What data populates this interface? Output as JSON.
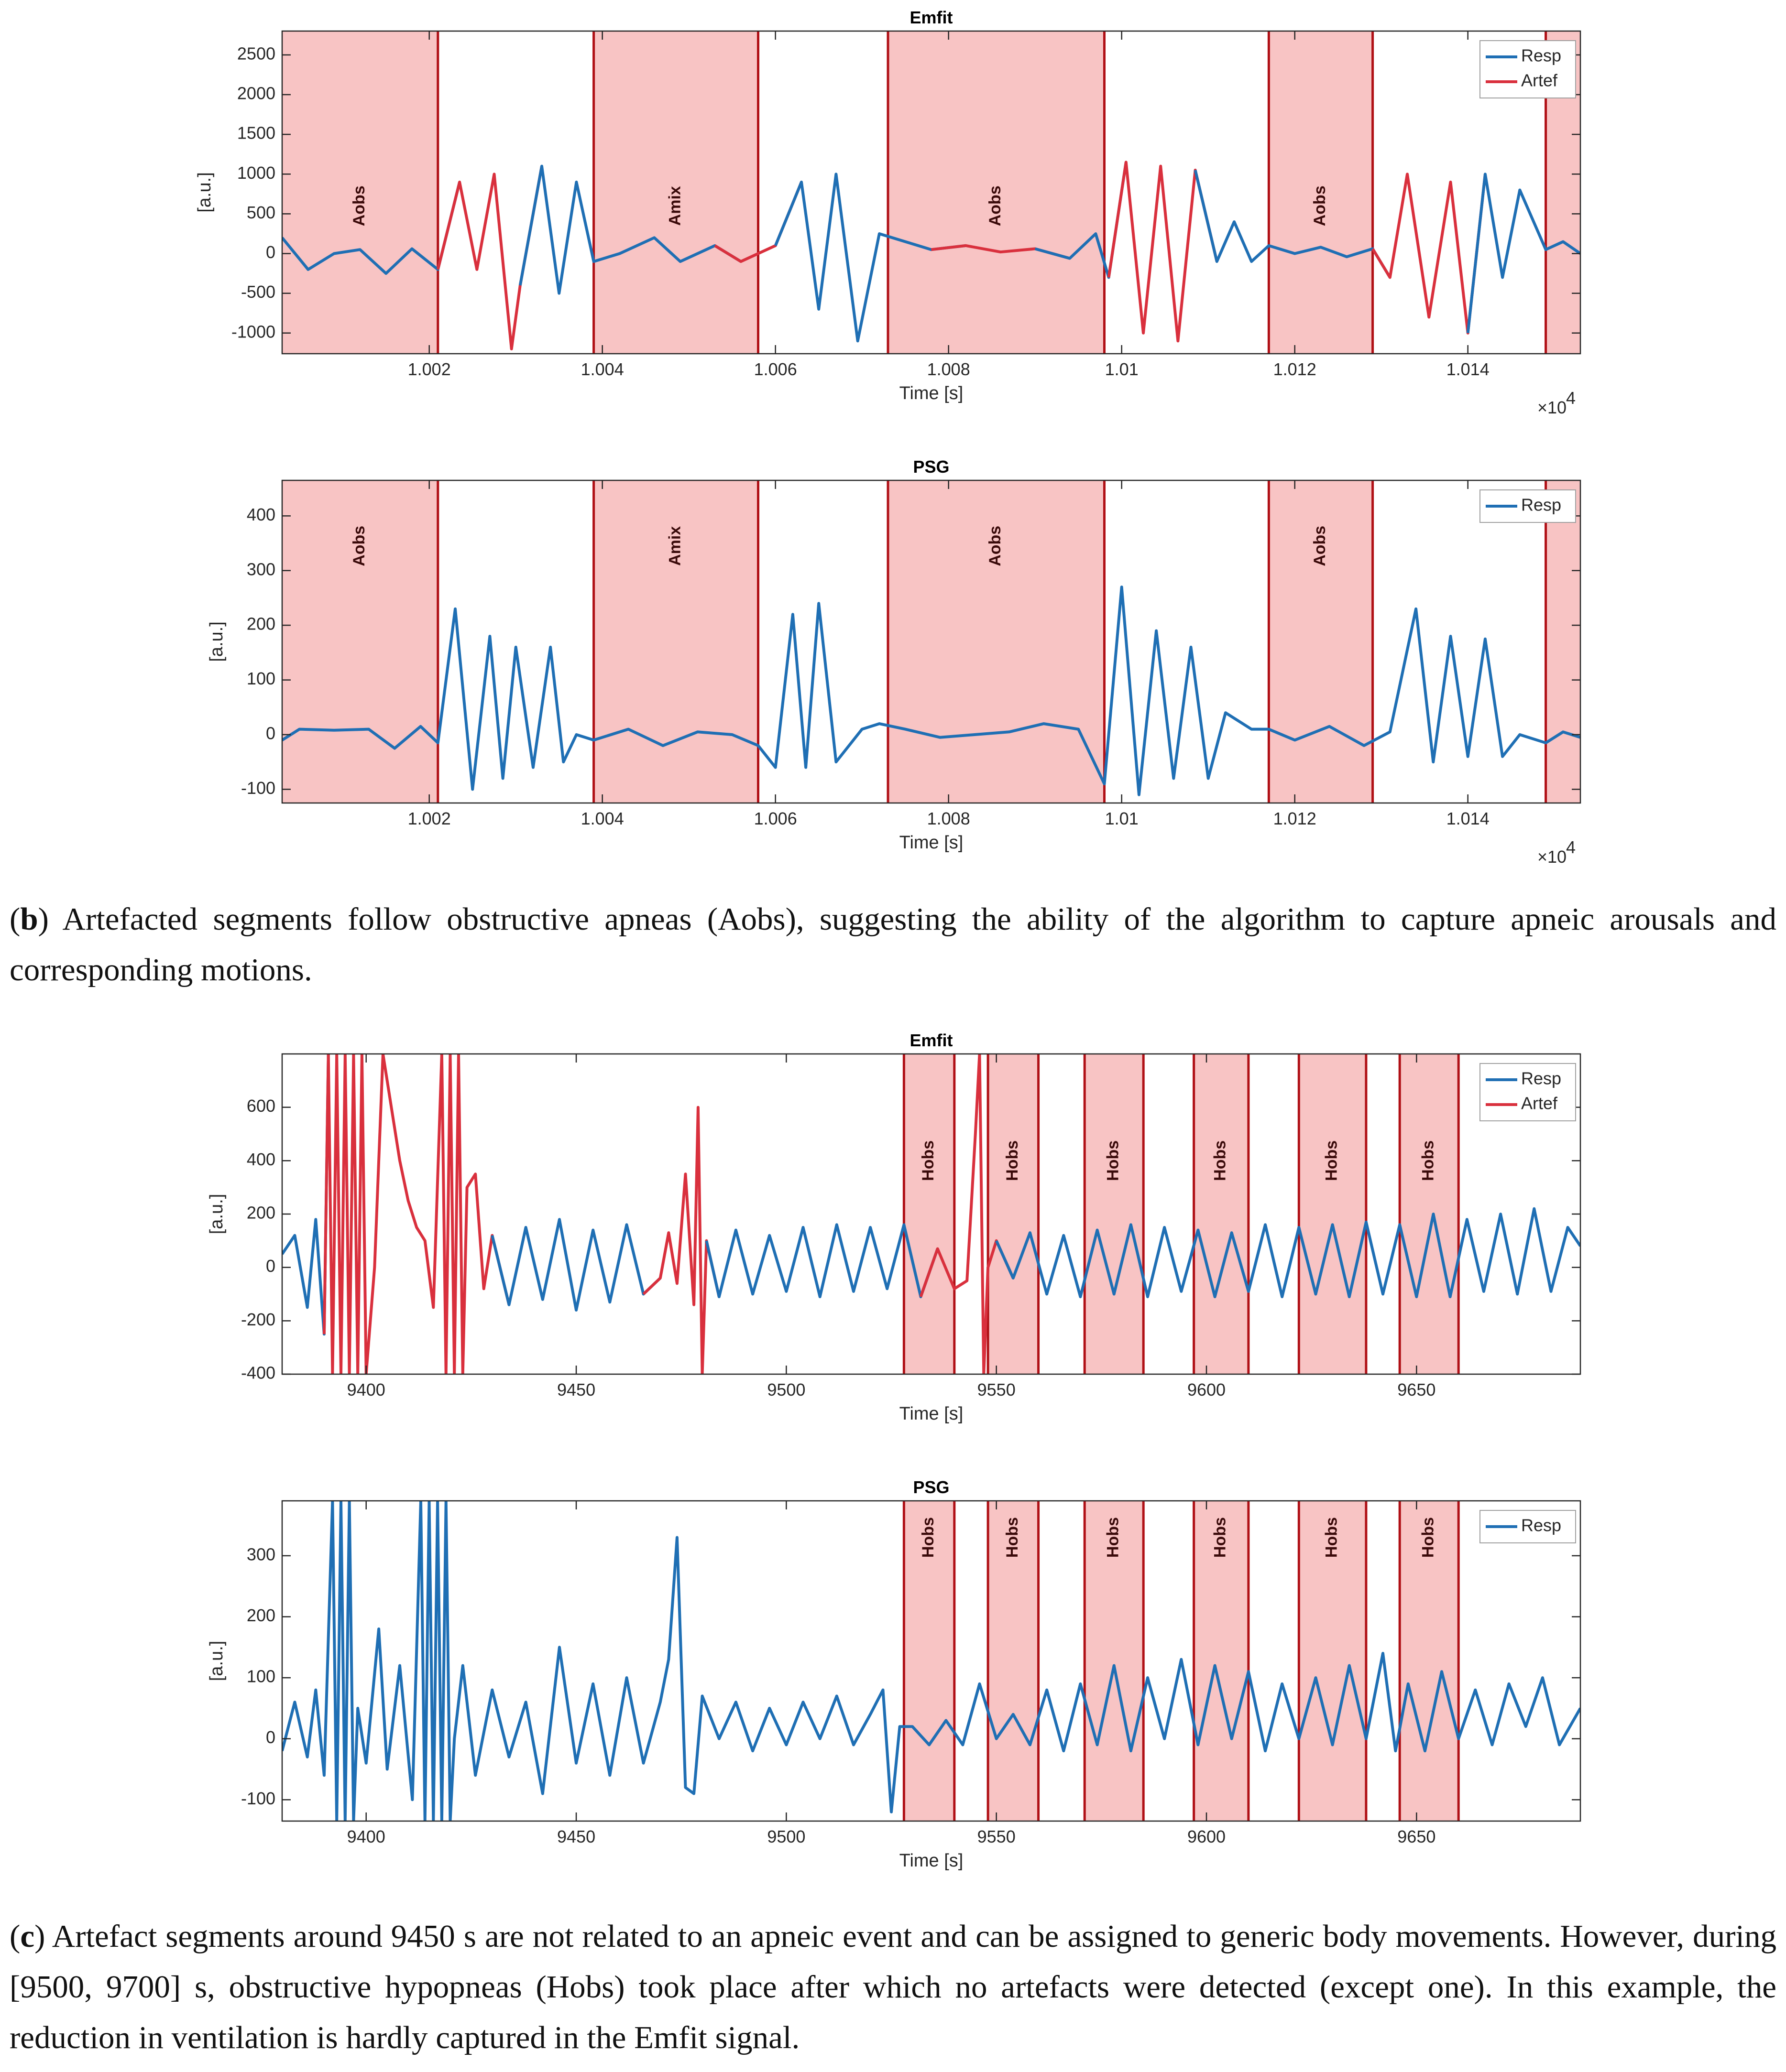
{
  "colors": {
    "resp": "#1f6fb4",
    "artef": "#d9303d",
    "shade": "#f8c4c4",
    "edge": "#b01016",
    "axis": "#262626"
  },
  "chart_data": [
    {
      "type": "line",
      "panel": "b",
      "title": "Emfit",
      "xlabel": "Time [s]",
      "ylabel": "[a.u.]",
      "xmultiplier": "×10",
      "xlim": [
        10000.3,
        10015.3
      ],
      "ylim": [
        -1260,
        2800
      ],
      "xticks": [
        10002,
        10004,
        10006,
        10008,
        10010,
        10012,
        10014
      ],
      "xticklabels": [
        "1.002",
        "1.004",
        "1.006",
        "1.008",
        "1.01",
        "1.012",
        "1.014"
      ],
      "yticks": [
        -1000,
        -500,
        0,
        500,
        1000,
        1500,
        2000,
        2500
      ],
      "yticklabels": [
        "-1000",
        "-500",
        "0",
        "500",
        "1000",
        "1500",
        "2000",
        "2500"
      ],
      "legend": [
        "Resp",
        "Artef"
      ],
      "legend_loc": "top-right",
      "events": [
        {
          "start": 10000.3,
          "end": 10002.1,
          "label": "Aobs"
        },
        {
          "start": 10003.9,
          "end": 10005.8,
          "label": "Amix"
        },
        {
          "start": 10007.3,
          "end": 10009.8,
          "label": "Aobs"
        },
        {
          "start": 10011.7,
          "end": 10012.9,
          "label": "Aobs"
        },
        {
          "start": 10014.9,
          "end": 10015.3,
          "label": ""
        }
      ],
      "event_label_y": 600,
      "artefacts": [
        [
          10002.1,
          10003.0
        ],
        [
          10005.1,
          10006.1
        ],
        [
          10008.0,
          10009.0
        ],
        [
          10009.85,
          10010.95
        ],
        [
          10012.9,
          10013.9
        ]
      ],
      "series": [
        {
          "name": "Resp",
          "x": [
            10000.3,
            10000.6,
            10000.9,
            10001.2,
            10001.5,
            10001.8,
            10002.1,
            10002.35,
            10002.55,
            10002.75,
            10002.95,
            10003.05,
            10003.3,
            10003.5,
            10003.7,
            10003.9,
            10004.2,
            10004.6,
            10004.9,
            10005.3,
            10005.6,
            10005.8,
            10006.0,
            10006.3,
            10006.5,
            10006.7,
            10006.95,
            10007.2,
            10007.5,
            10007.8,
            10008.2,
            10008.6,
            10009.0,
            10009.4,
            10009.7,
            10009.85,
            10010.05,
            10010.25,
            10010.45,
            10010.65,
            10010.85,
            10011.1,
            10011.3,
            10011.5,
            10011.7,
            10012.0,
            10012.3,
            10012.6,
            10012.9,
            10013.1,
            10013.3,
            10013.55,
            10013.8,
            10014.0,
            10014.2,
            10014.4,
            10014.6,
            10014.9,
            10015.1,
            10015.3
          ],
          "y": [
            200,
            -200,
            0,
            50,
            -250,
            60,
            -200,
            900,
            -200,
            1000,
            -1200,
            -400,
            1100,
            -500,
            900,
            -100,
            0,
            200,
            -100,
            100,
            -100,
            0,
            100,
            900,
            -700,
            1000,
            -1100,
            250,
            150,
            50,
            100,
            20,
            60,
            -60,
            250,
            -300,
            1150,
            -1000,
            1100,
            -1100,
            1050,
            -100,
            400,
            -100,
            100,
            0,
            80,
            -40,
            60,
            -300,
            1000,
            -800,
            900,
            -1000,
            1000,
            -300,
            800,
            50,
            150,
            0
          ]
        }
      ]
    },
    {
      "type": "line",
      "panel": "b",
      "title": "PSG",
      "xlabel": "Time [s]",
      "ylabel": "[a.u.]",
      "xmultiplier": "×10",
      "xlim": [
        10000.3,
        10015.3
      ],
      "ylim": [
        -125,
        465
      ],
      "xticks": [
        10002,
        10004,
        10006,
        10008,
        10010,
        10012,
        10014
      ],
      "xticklabels": [
        "1.002",
        "1.004",
        "1.006",
        "1.008",
        "1.01",
        "1.012",
        "1.014"
      ],
      "yticks": [
        -100,
        0,
        100,
        200,
        300,
        400
      ],
      "yticklabels": [
        "-100",
        "0",
        "100",
        "200",
        "300",
        "400"
      ],
      "legend": [
        "Resp"
      ],
      "legend_loc": "top-right",
      "events": [
        {
          "start": 10000.3,
          "end": 10002.1,
          "label": "Aobs"
        },
        {
          "start": 10003.9,
          "end": 10005.8,
          "label": "Amix"
        },
        {
          "start": 10007.3,
          "end": 10009.8,
          "label": "Aobs"
        },
        {
          "start": 10011.7,
          "end": 10012.9,
          "label": "Aobs"
        },
        {
          "start": 10014.9,
          "end": 10015.3,
          "label": ""
        }
      ],
      "event_label_y": 345,
      "artefacts": [],
      "series": [
        {
          "name": "Resp",
          "x": [
            10000.3,
            10000.5,
            10000.9,
            10001.3,
            10001.6,
            10001.9,
            10002.1,
            10002.3,
            10002.5,
            10002.7,
            10002.85,
            10003.0,
            10003.2,
            10003.4,
            10003.55,
            10003.7,
            10003.9,
            10004.3,
            10004.7,
            10005.1,
            10005.5,
            10005.8,
            10006.0,
            10006.2,
            10006.35,
            10006.5,
            10006.7,
            10006.8,
            10007.0,
            10007.2,
            10007.5,
            10007.9,
            10008.3,
            10008.7,
            10009.1,
            10009.5,
            10009.8,
            10010.0,
            10010.2,
            10010.4,
            10010.6,
            10010.8,
            10011.0,
            10011.2,
            10011.5,
            10011.7,
            10012.0,
            10012.4,
            10012.8,
            10013.1,
            10013.4,
            10013.6,
            10013.8,
            10014.0,
            10014.2,
            10014.4,
            10014.6,
            10014.9,
            10015.1,
            10015.3
          ],
          "y": [
            -10,
            10,
            8,
            10,
            -25,
            15,
            -15,
            230,
            -100,
            180,
            -80,
            160,
            -60,
            160,
            -50,
            0,
            -10,
            10,
            -20,
            5,
            0,
            -20,
            -60,
            220,
            -60,
            240,
            -50,
            -30,
            10,
            20,
            10,
            -5,
            0,
            5,
            20,
            10,
            -90,
            270,
            -110,
            190,
            -80,
            160,
            -80,
            40,
            10,
            10,
            -10,
            15,
            -20,
            5,
            230,
            -50,
            180,
            -40,
            175,
            -40,
            0,
            -15,
            5,
            -5
          ]
        }
      ]
    },
    {
      "type": "line",
      "panel": "c",
      "title": "Emfit",
      "xlabel": "Time [s]",
      "ylabel": "[a.u.]",
      "xlim": [
        9380,
        9689
      ],
      "ylim": [
        -400,
        800
      ],
      "xticks": [
        9400,
        9450,
        9500,
        9550,
        9600,
        9650
      ],
      "xticklabels": [
        "9400",
        "9450",
        "9500",
        "9550",
        "9600",
        "9650"
      ],
      "yticks": [
        -400,
        -200,
        0,
        200,
        400,
        600
      ],
      "yticklabels": [
        "-400",
        "-200",
        "0",
        "200",
        "400",
        "600"
      ],
      "legend": [
        "Resp",
        "Artef"
      ],
      "legend_loc": "top-right",
      "events": [
        {
          "start": 9528,
          "end": 9540,
          "label": "Hobs"
        },
        {
          "start": 9548,
          "end": 9560,
          "label": "Hobs"
        },
        {
          "start": 9571,
          "end": 9585,
          "label": "Hobs"
        },
        {
          "start": 9597,
          "end": 9610,
          "label": "Hobs"
        },
        {
          "start": 9622,
          "end": 9638,
          "label": "Hobs"
        },
        {
          "start": 9646,
          "end": 9660,
          "label": "Hobs"
        }
      ],
      "event_label_y": 400,
      "artefacts": [
        [
          9390,
          9430
        ],
        [
          9468,
          9481
        ],
        [
          9533,
          9550
        ]
      ],
      "series": [
        {
          "name": "Resp",
          "x": [
            9380,
            9383,
            9386,
            9388,
            9390,
            9391,
            9392,
            9393,
            9394,
            9395,
            9396,
            9397,
            9398,
            9399,
            9400,
            9402,
            9404,
            9406,
            9408,
            9410,
            9412,
            9414,
            9416,
            9418,
            9419,
            9420,
            9421,
            9422,
            9423,
            9424,
            9426,
            9428,
            9430,
            9434,
            9438,
            9442,
            9446,
            9450,
            9454,
            9458,
            9462,
            9466,
            9470,
            9472,
            9474,
            9476,
            9478,
            9479,
            9480,
            9481,
            9484,
            9488,
            9492,
            9496,
            9500,
            9504,
            9508,
            9512,
            9516,
            9520,
            9524,
            9528,
            9532,
            9536,
            9540,
            9543,
            9545,
            9546,
            9547,
            9548,
            9550,
            9554,
            9558,
            9562,
            9566,
            9570,
            9574,
            9578,
            9582,
            9586,
            9590,
            9594,
            9598,
            9602,
            9606,
            9610,
            9614,
            9618,
            9622,
            9626,
            9630,
            9634,
            9638,
            9642,
            9646,
            9650,
            9654,
            9658,
            9662,
            9666,
            9670,
            9674,
            9678,
            9682,
            9686,
            9689
          ],
          "y": [
            50,
            120,
            -150,
            180,
            -250,
            800,
            -400,
            800,
            -400,
            800,
            -400,
            800,
            -400,
            800,
            -400,
            0,
            800,
            600,
            400,
            250,
            150,
            100,
            -150,
            800,
            -400,
            800,
            -400,
            800,
            -400,
            300,
            350,
            -80,
            120,
            -140,
            150,
            -120,
            180,
            -160,
            140,
            -130,
            160,
            -100,
            -40,
            130,
            -60,
            350,
            -140,
            600,
            -400,
            100,
            -110,
            140,
            -100,
            120,
            -90,
            150,
            -110,
            160,
            -90,
            150,
            -80,
            160,
            -110,
            70,
            -80,
            -50,
            500,
            800,
            -400,
            0,
            100,
            -40,
            130,
            -100,
            120,
            -110,
            140,
            -100,
            160,
            -110,
            150,
            -90,
            140,
            -110,
            130,
            -90,
            160,
            -110,
            150,
            -100,
            160,
            -110,
            170,
            -100,
            160,
            -110,
            200,
            -110,
            180,
            -90,
            200,
            -100,
            220,
            -90,
            150,
            80
          ]
        }
      ]
    },
    {
      "type": "line",
      "panel": "c",
      "title": "PSG",
      "xlabel": "Time [s]",
      "ylabel": "[a.u.]",
      "xlim": [
        9380,
        9689
      ],
      "ylim": [
        -135,
        390
      ],
      "xticks": [
        9400,
        9450,
        9500,
        9550,
        9600,
        9650
      ],
      "xticklabels": [
        "9400",
        "9450",
        "9500",
        "9550",
        "9600",
        "9650"
      ],
      "yticks": [
        -100,
        0,
        100,
        200,
        300
      ],
      "yticklabels": [
        "-100",
        "0",
        "100",
        "200",
        "300"
      ],
      "legend": [
        "Resp"
      ],
      "legend_loc": "top-right",
      "events": [
        {
          "start": 9528,
          "end": 9540,
          "label": "Hobs"
        },
        {
          "start": 9548,
          "end": 9560,
          "label": "Hobs"
        },
        {
          "start": 9571,
          "end": 9585,
          "label": "Hobs"
        },
        {
          "start": 9597,
          "end": 9610,
          "label": "Hobs"
        },
        {
          "start": 9622,
          "end": 9638,
          "label": "Hobs"
        },
        {
          "start": 9646,
          "end": 9660,
          "label": "Hobs"
        }
      ],
      "event_label_y": 330,
      "artefacts": [],
      "series": [
        {
          "name": "Resp",
          "x": [
            9380,
            9383,
            9386,
            9388,
            9390,
            9392,
            9393,
            9394,
            9395,
            9396,
            9397,
            9398,
            9400,
            9403,
            9405,
            9408,
            9411,
            9413,
            9414,
            9415,
            9416,
            9417,
            9418,
            9419,
            9420,
            9421,
            9423,
            9426,
            9430,
            9434,
            9438,
            9442,
            9446,
            9450,
            9454,
            9458,
            9462,
            9466,
            9470,
            9472,
            9474,
            9476,
            9478,
            9480,
            9484,
            9488,
            9492,
            9496,
            9500,
            9504,
            9508,
            9512,
            9516,
            9520,
            9523,
            9525,
            9527,
            9530,
            9534,
            9538,
            9542,
            9546,
            9550,
            9554,
            9558,
            9562,
            9566,
            9570,
            9574,
            9578,
            9582,
            9586,
            9590,
            9594,
            9598,
            9602,
            9606,
            9610,
            9614,
            9618,
            9622,
            9626,
            9630,
            9634,
            9638,
            9642,
            9645,
            9648,
            9652,
            9656,
            9660,
            9664,
            9668,
            9672,
            9676,
            9680,
            9684,
            9689
          ],
          "y": [
            -20,
            60,
            -30,
            80,
            -60,
            390,
            -135,
            390,
            -135,
            390,
            -135,
            50,
            -40,
            180,
            -50,
            120,
            -100,
            390,
            -135,
            390,
            -135,
            390,
            -135,
            390,
            -135,
            0,
            120,
            -60,
            80,
            -30,
            60,
            -90,
            150,
            -40,
            90,
            -60,
            100,
            -40,
            60,
            130,
            330,
            -80,
            -90,
            70,
            0,
            60,
            -20,
            50,
            -10,
            60,
            0,
            70,
            -10,
            40,
            80,
            -120,
            20,
            20,
            -10,
            30,
            -10,
            90,
            0,
            40,
            -10,
            80,
            -20,
            90,
            -10,
            120,
            -20,
            100,
            0,
            130,
            -10,
            120,
            0,
            110,
            -20,
            90,
            0,
            100,
            -10,
            120,
            0,
            140,
            -20,
            90,
            -20,
            110,
            0,
            80,
            -10,
            90,
            20,
            100,
            -10,
            50
          ]
        }
      ]
    }
  ],
  "captions": {
    "b_tag": "b",
    "b_text": ") Artefacted segments follow obstructive apneas (Aobs), suggesting the ability of the algorithm to capture apneic arousals and corresponding motions.",
    "c_tag": "c",
    "c_text": ") Artefact segments around 9450 s are not related to an apneic event and can be assigned to generic body movements. However, during [9500, 9700] s, obstructive hypopneas (Hobs) took place after which no artefacts were detected (except one). In this example, the reduction in ventilation is hardly captured in the Emfit signal."
  }
}
